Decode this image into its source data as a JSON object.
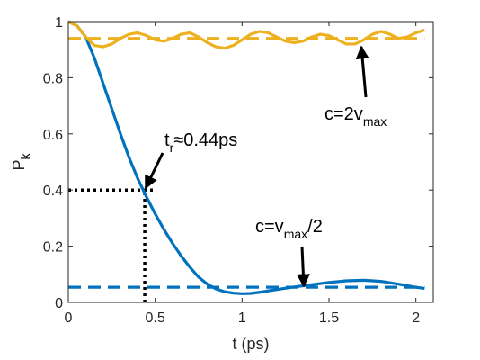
{
  "chart_data": {
    "type": "line",
    "xlabel": "t (ps)",
    "ylabel": "P",
    "ylabel_subscript": "k",
    "xlim": [
      0,
      2.1
    ],
    "ylim": [
      0,
      1
    ],
    "x_ticks": [
      0,
      0.5,
      1,
      1.5,
      2
    ],
    "x_tick_labels": [
      "0",
      "0.5",
      "1",
      "1.5",
      "2"
    ],
    "y_ticks": [
      0,
      0.2,
      0.4,
      0.6,
      0.8,
      1
    ],
    "y_tick_labels": [
      "0",
      "0.2",
      "0.4",
      "0.6",
      "0.8",
      "1"
    ],
    "grid": false,
    "legend": "none",
    "series": [
      {
        "style": "solid",
        "color": "#0072BD",
        "x": [
          0,
          0.05,
          0.1,
          0.15,
          0.2,
          0.25,
          0.3,
          0.35,
          0.4,
          0.45,
          0.5,
          0.55,
          0.6,
          0.65,
          0.7,
          0.75,
          0.8,
          0.85,
          0.9,
          0.95,
          1.0,
          1.05,
          1.1,
          1.15,
          1.2,
          1.3,
          1.4,
          1.5,
          1.6,
          1.7,
          1.8,
          1.9,
          2.0,
          2.05
        ],
        "y": [
          1.0,
          0.985,
          0.945,
          0.87,
          0.78,
          0.69,
          0.6,
          0.515,
          0.44,
          0.375,
          0.315,
          0.26,
          0.21,
          0.165,
          0.125,
          0.09,
          0.065,
          0.048,
          0.038,
          0.033,
          0.031,
          0.032,
          0.036,
          0.041,
          0.046,
          0.055,
          0.063,
          0.071,
          0.077,
          0.079,
          0.075,
          0.065,
          0.054,
          0.05
        ]
      },
      {
        "style": "dashed",
        "color": "#0072BD",
        "x": [
          0,
          2.05
        ],
        "y": [
          0.054,
          0.054
        ]
      },
      {
        "style": "solid",
        "color": "#EDB120",
        "x": [
          0,
          0.05,
          0.1,
          0.15,
          0.2,
          0.25,
          0.3,
          0.35,
          0.4,
          0.45,
          0.5,
          0.55,
          0.6,
          0.65,
          0.7,
          0.75,
          0.8,
          0.85,
          0.9,
          0.95,
          1.0,
          1.05,
          1.1,
          1.15,
          1.2,
          1.25,
          1.3,
          1.35,
          1.4,
          1.45,
          1.5,
          1.55,
          1.6,
          1.65,
          1.7,
          1.75,
          1.8,
          1.85,
          1.9,
          1.95,
          2.0,
          2.05
        ],
        "y": [
          1.0,
          0.985,
          0.945,
          0.915,
          0.91,
          0.92,
          0.94,
          0.955,
          0.96,
          0.95,
          0.935,
          0.93,
          0.94,
          0.955,
          0.96,
          0.945,
          0.925,
          0.91,
          0.905,
          0.915,
          0.935,
          0.955,
          0.965,
          0.96,
          0.945,
          0.93,
          0.925,
          0.93,
          0.945,
          0.955,
          0.95,
          0.935,
          0.92,
          0.92,
          0.935,
          0.955,
          0.965,
          0.955,
          0.94,
          0.945,
          0.96,
          0.97
        ]
      },
      {
        "style": "dashed",
        "color": "#EDB120",
        "x": [
          0,
          2.05
        ],
        "y": [
          0.94,
          0.94
        ]
      }
    ],
    "reference_lines": {
      "style": "dotted",
      "color": "#000000",
      "horizontal": {
        "y": 0.4,
        "x_from": 0,
        "x_to": 0.5
      },
      "vertical": {
        "x": 0.44,
        "y_from": 0,
        "y_to": 0.4
      }
    },
    "annotations": [
      {
        "id": "tr",
        "prefix": "t",
        "subscript": "r",
        "suffix": "≈0.44ps",
        "arrow_to": [
          0.44,
          0.4
        ]
      },
      {
        "id": "c-half",
        "prefix": "c=v",
        "subscript": "max",
        "suffix": "/2",
        "arrow_to": [
          1.37,
          0.054
        ]
      },
      {
        "id": "c-double",
        "prefix": "c=2v",
        "subscript": "max",
        "suffix": "",
        "arrow_to": [
          1.72,
          0.94
        ]
      }
    ]
  }
}
